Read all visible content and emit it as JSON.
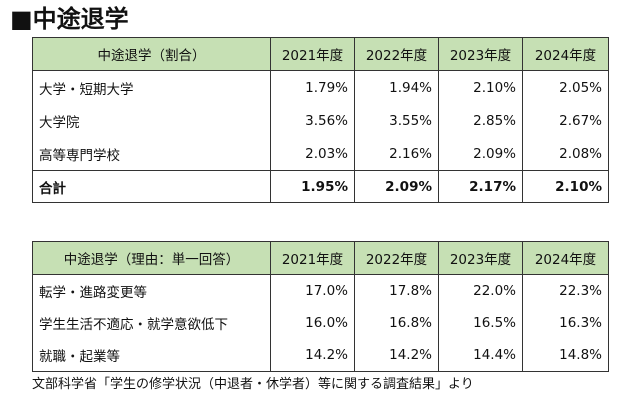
{
  "title": "■中途退学",
  "table1": {
    "headers": [
      "中途退学（割合）",
      "2021年度",
      "2022年度",
      "2023年度",
      "2024年度"
    ],
    "rows": [
      {
        "label": "大学・短期大学",
        "values": [
          "1.79%",
          "1.94%",
          "2.10%",
          "2.05%"
        ]
      },
      {
        "label": "大学院",
        "values": [
          "3.56%",
          "3.55%",
          "2.85%",
          "2.67%"
        ]
      },
      {
        "label": "高等専門学校",
        "values": [
          "2.03%",
          "2.16%",
          "2.09%",
          "2.08%"
        ]
      }
    ],
    "total": {
      "label": "合計",
      "values": [
        "1.95%",
        "2.09%",
        "2.17%",
        "2.10%"
      ]
    }
  },
  "table2": {
    "headers": [
      "中途退学（理由：単一回答）",
      "2021年度",
      "2022年度",
      "2023年度",
      "2024年度"
    ],
    "rows": [
      {
        "label": "転学・進路変更等",
        "values": [
          "17.0%",
          "17.8%",
          "22.0%",
          "22.3%"
        ]
      },
      {
        "label": "学生生活不適応・就学意欲低下",
        "values": [
          "16.0%",
          "16.8%",
          "16.5%",
          "16.3%"
        ]
      },
      {
        "label": "就職・起業等",
        "values": [
          "14.2%",
          "14.2%",
          "14.4%",
          "14.8%"
        ]
      }
    ]
  },
  "source": "文部科学省「学生の修学状況（中退者・休学者）等に関する調査結果」より"
}
